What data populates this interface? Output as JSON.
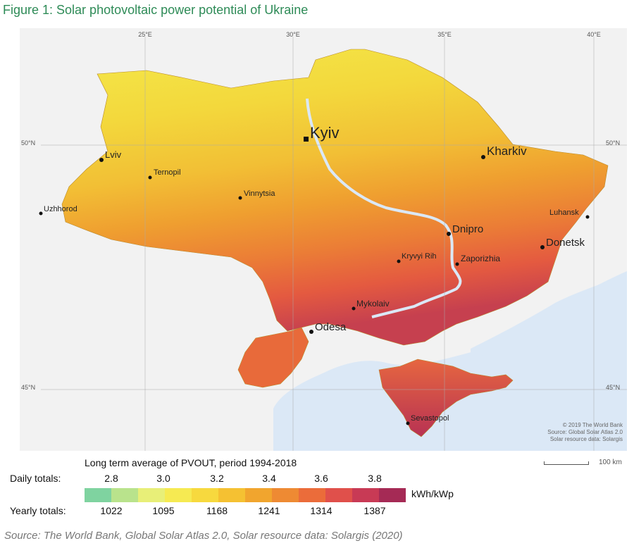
{
  "figure_title": "Figure 1: Solar photovoltaic power potential of Ukraine",
  "grid_labels": {
    "lon": [
      "25°E",
      "30°E",
      "35°E",
      "40°E"
    ],
    "lat_left": [
      "50°N",
      "45°N"
    ],
    "lat_right": [
      "50°N",
      "45°N"
    ]
  },
  "cities": [
    {
      "name": "Kyiv",
      "major": true,
      "capital": true
    },
    {
      "name": "Kharkiv",
      "major": true
    },
    {
      "name": "Lviv",
      "major": false
    },
    {
      "name": "Ternopil",
      "major": false
    },
    {
      "name": "Vinnytsia",
      "major": false
    },
    {
      "name": "Uzhhorod",
      "major": false
    },
    {
      "name": "Dnipro",
      "major": true
    },
    {
      "name": "Luhansk",
      "major": false
    },
    {
      "name": "Donetsk",
      "major": true
    },
    {
      "name": "Kryvyi Rih",
      "major": false
    },
    {
      "name": "Zaporizhia",
      "major": false
    },
    {
      "name": "Mykolaiv",
      "major": false
    },
    {
      "name": "Odesa",
      "major": true
    },
    {
      "name": "Sevastopol",
      "major": false
    }
  ],
  "credits": [
    "© 2019 The World Bank",
    "Source: Global Solar Atlas 2.0",
    "Solar resource data: Solargis"
  ],
  "scale_label": "100 km",
  "legend": {
    "title": "Long term average of PVOUT, period 1994-2018",
    "daily_label": "Daily totals:",
    "yearly_label": "Yearly totals:",
    "daily_ticks": [
      "2.8",
      "3.0",
      "3.2",
      "3.4",
      "3.6",
      "3.8"
    ],
    "yearly_ticks": [
      "1022",
      "1095",
      "1168",
      "1241",
      "1314",
      "1387"
    ],
    "unit": "kWh/kWp",
    "colors": [
      "#7fd3a0",
      "#b9e38c",
      "#e8ef78",
      "#f6ea52",
      "#f7d93e",
      "#f5c132",
      "#f1a52e",
      "#ee8a33",
      "#eb6c3a",
      "#e0504b",
      "#c83a55",
      "#a52a55"
    ]
  },
  "source": "Source: The World Bank, Global Solar Atlas 2.0, Solar resource data: Solargis (2020)"
}
